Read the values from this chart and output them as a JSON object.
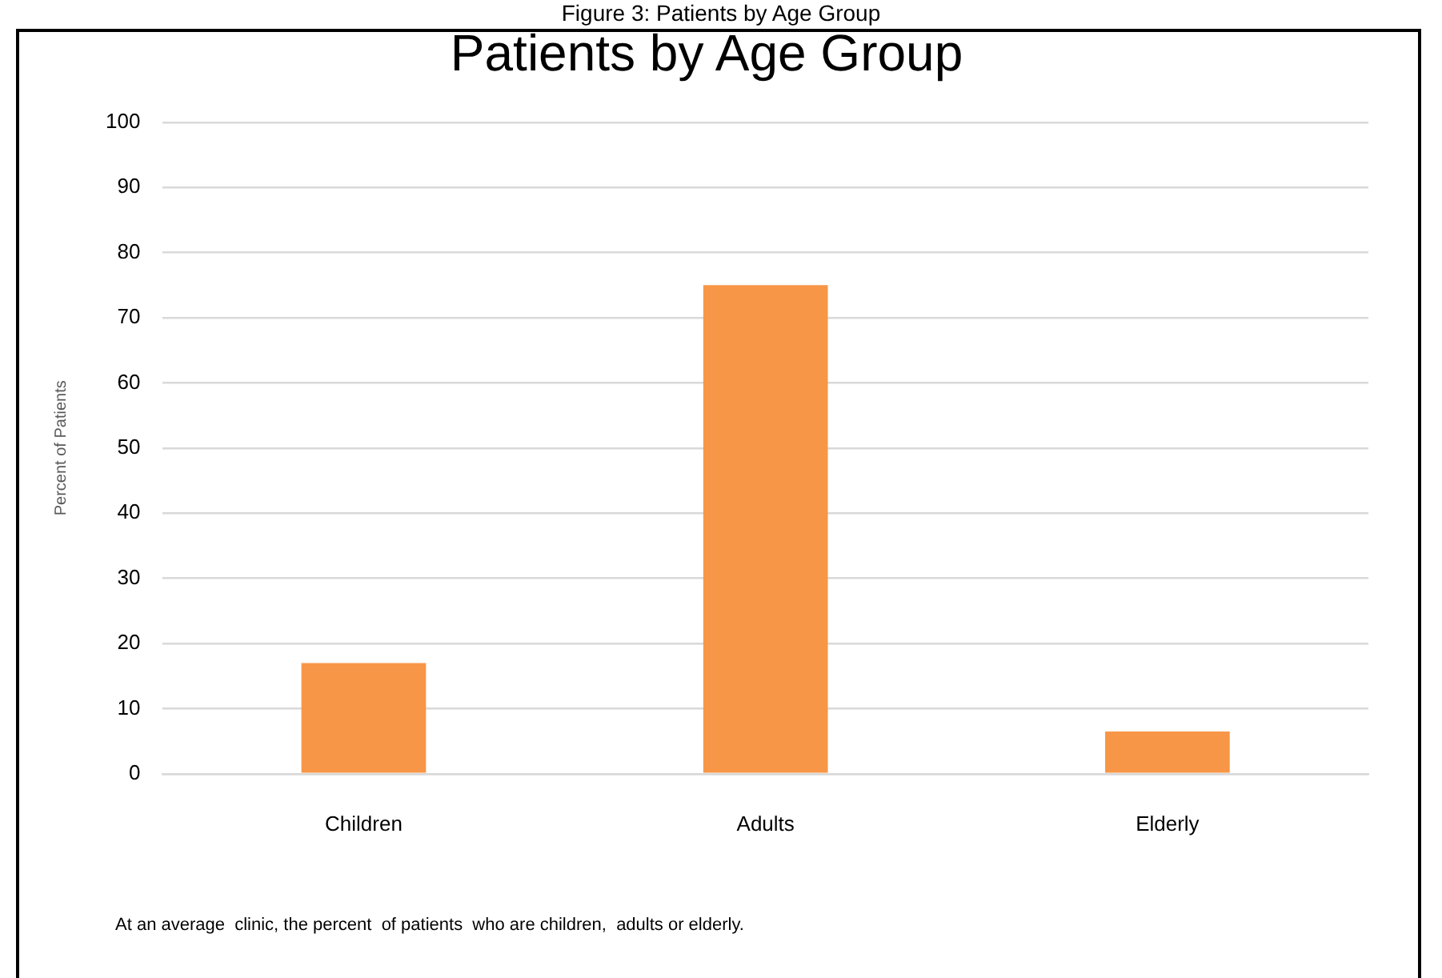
{
  "chart_data": {
    "type": "bar",
    "title": "Patients by Age Group",
    "ylabel": "Percent of Patients",
    "categories": [
      "Children",
      "Adults",
      "Elderly"
    ],
    "values": [
      17,
      75,
      6.5
    ],
    "color": "#f79646",
    "ylim": [
      0,
      100
    ],
    "yticks": [
      0,
      10,
      20,
      30,
      40,
      50,
      60,
      70,
      80,
      90,
      100
    ],
    "grid": "y",
    "legend": false,
    "annotations": [
      "Figure 3: Patients by Age Group",
      "At an average  clinic, the percent  of patients  who are children,  adults or elderly."
    ]
  }
}
